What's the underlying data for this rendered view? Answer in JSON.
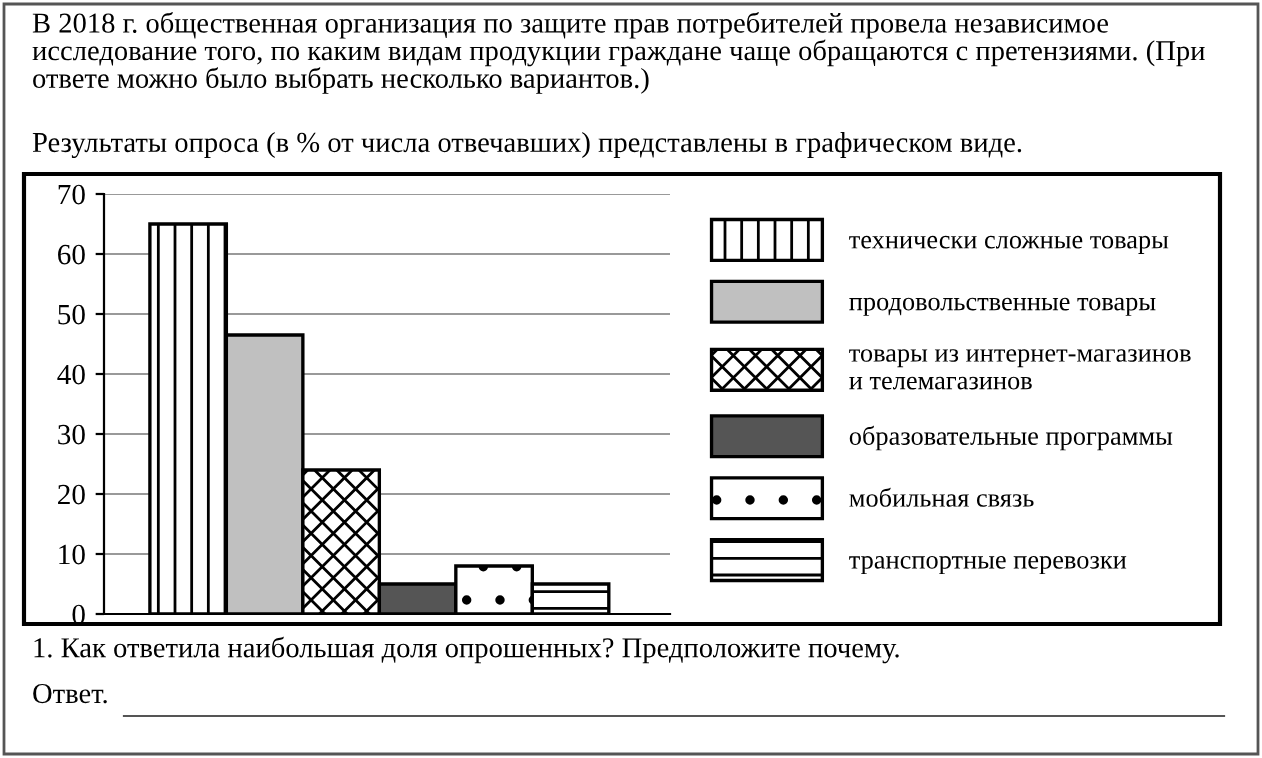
{
  "chart_data": {
    "type": "bar",
    "title": "В 2018 г. общественная организация по защите прав потребителей провела независимое исследование того, по каким видам продукции граждане чаще обращаются с претензиями. (При ответе можно было выбрать несколько вариантов.)",
    "subtitle": "Результаты опроса (в % от числа отвечавших) представлены в графическом виде.",
    "annotations": [
      "1. Как ответила наибольшая доля опрошенных? Предположите почему.",
      "Ответ."
    ],
    "categories": [
      null
    ],
    "series": [
      {
        "name": "технически сложные товары",
        "color": "#000000",
        "values": [
          65
        ]
      },
      {
        "name": "продовольственные товары",
        "color": "#c0c0c0",
        "values": [
          46.5
        ]
      },
      {
        "name": "товары из интернет-магазинов\nи телемагазинов",
        "color": "#000000",
        "values": [
          24
        ]
      },
      {
        "name": "образовательные программы",
        "color": "#555555",
        "values": [
          5
        ]
      },
      {
        "name": "мобильная связь",
        "color": "#000000",
        "values": [
          8
        ]
      },
      {
        "name": "транспортные перевозки",
        "color": "#000000",
        "values": [
          5
        ]
      }
    ],
    "ylim": [
      0,
      70
    ],
    "yticks": [
      0,
      10,
      20,
      30,
      40,
      50,
      60,
      70
    ],
    "grid": "y",
    "legend": "right"
  }
}
